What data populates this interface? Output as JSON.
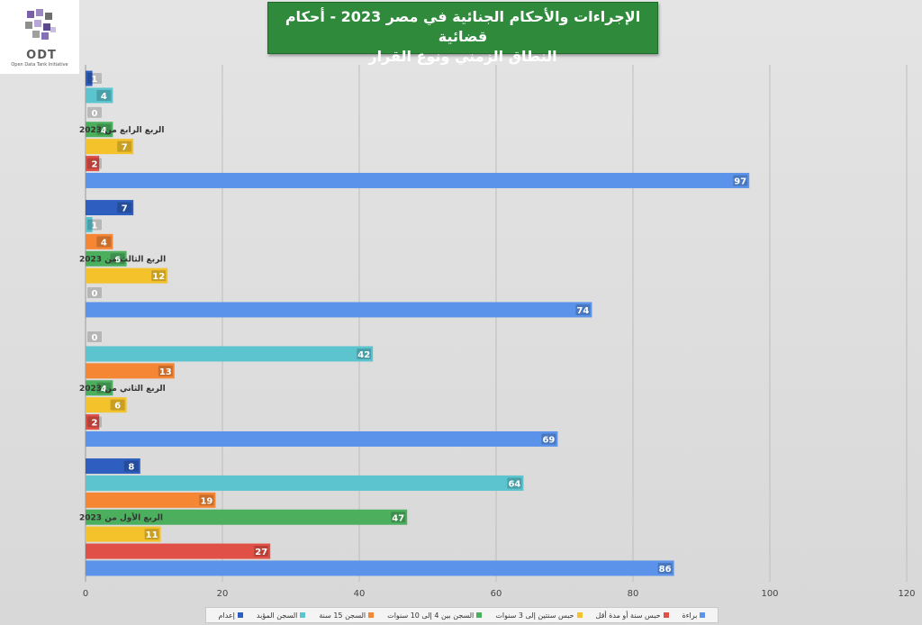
{
  "logo": {
    "text": "ODT",
    "subtitle": "Open Data Tank Initiative"
  },
  "title": {
    "line1": "الإجراءات والأحكام الجنائية في مصر 2023 - أحكام قضائية",
    "line2": "النطاق الزمني ونوع القرار"
  },
  "chart_data": {
    "type": "bar",
    "orientation": "horizontal",
    "grid": true,
    "legend_position": "bottom",
    "xlim": [
      0,
      120
    ],
    "x_ticks": [
      "0",
      "20",
      "40",
      "60",
      "80",
      "100",
      "120"
    ],
    "categories": [
      "الربع الرابع من 2023",
      "الربع الثالث من 2023",
      "الربع الثاني من 2023",
      "الربع الأول من 2023"
    ],
    "series": [
      {
        "name": "إعدام",
        "color": "#2e5ebf",
        "values": [
          1,
          7,
          0,
          8
        ]
      },
      {
        "name": "السجن المؤبد",
        "color": "#5bc4cf",
        "values": [
          4,
          1,
          42,
          64
        ]
      },
      {
        "name": "السجن 15 سنة",
        "color": "#f58634",
        "values": [
          0,
          4,
          13,
          19
        ]
      },
      {
        "name": "السجن بين 4 إلى 10 سنوات",
        "color": "#4caf5e",
        "values": [
          4,
          6,
          4,
          47
        ]
      },
      {
        "name": "حبس سنتين إلى 3 سنوات",
        "color": "#f4c22b",
        "values": [
          7,
          12,
          6,
          11
        ]
      },
      {
        "name": "حبس سنة أو مدة أقل",
        "color": "#e05046",
        "values": [
          2,
          0,
          2,
          27
        ]
      },
      {
        "name": "براءة",
        "color": "#5b93ea",
        "values": [
          97,
          74,
          69,
          86
        ]
      }
    ]
  }
}
